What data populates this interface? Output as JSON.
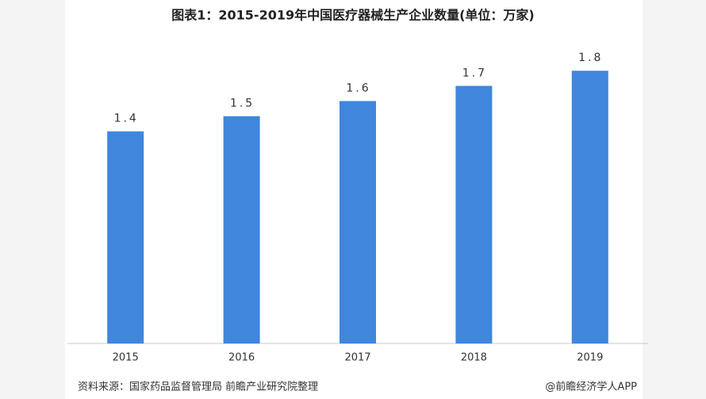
{
  "chart_data": {
    "type": "bar",
    "title": "图表1：2015-2019年中国医疗器械生产企业数量(单位：万家)",
    "categories": [
      "2015",
      "2016",
      "2017",
      "2018",
      "2019"
    ],
    "values": [
      1.4,
      1.5,
      1.6,
      1.7,
      1.8
    ],
    "color": "#3f86dc",
    "ylim": [
      0,
      2
    ],
    "data_labels": true,
    "source": "资料来源：国家药品监督管理局 前瞻产业研究院整理",
    "credit": "@前瞻经济学人APP"
  }
}
